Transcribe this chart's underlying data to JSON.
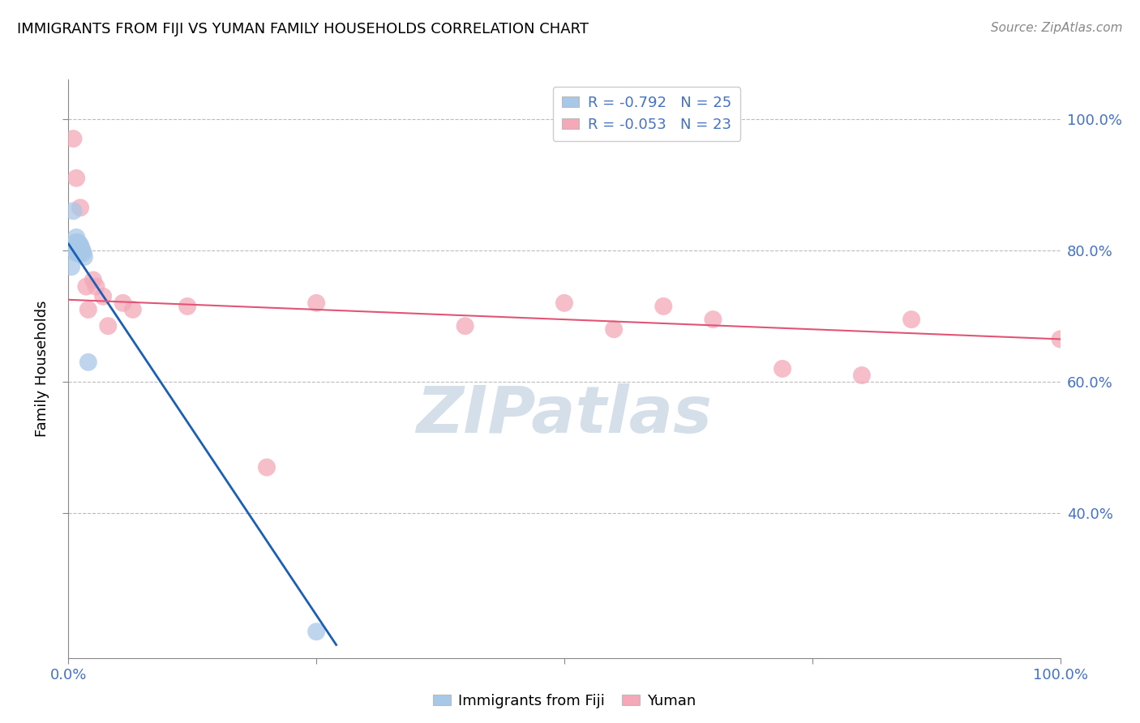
{
  "title": "IMMIGRANTS FROM FIJI VS YUMAN FAMILY HOUSEHOLDS CORRELATION CHART",
  "source": "Source: ZipAtlas.com",
  "ylabel": "Family Households",
  "right_yticks": [
    "40.0%",
    "60.0%",
    "80.0%",
    "100.0%"
  ],
  "right_ytick_vals": [
    0.4,
    0.6,
    0.8,
    1.0
  ],
  "color_blue": "#a8c8e8",
  "color_pink": "#f4a8b8",
  "color_blue_line": "#1a5fb4",
  "color_pink_line": "#e05575",
  "fiji_x": [
    0.003,
    0.005,
    0.006,
    0.006,
    0.007,
    0.007,
    0.008,
    0.008,
    0.008,
    0.009,
    0.009,
    0.009,
    0.01,
    0.01,
    0.01,
    0.011,
    0.011,
    0.012,
    0.012,
    0.013,
    0.014,
    0.015,
    0.016,
    0.02,
    0.25
  ],
  "fiji_y": [
    0.775,
    0.86,
    0.808,
    0.798,
    0.812,
    0.8,
    0.82,
    0.81,
    0.8,
    0.812,
    0.804,
    0.796,
    0.812,
    0.804,
    0.795,
    0.81,
    0.8,
    0.808,
    0.798,
    0.804,
    0.8,
    0.796,
    0.79,
    0.63,
    0.22
  ],
  "yuman_x": [
    0.005,
    0.008,
    0.012,
    0.018,
    0.02,
    0.025,
    0.028,
    0.035,
    0.04,
    0.055,
    0.065,
    0.12,
    0.2,
    0.25,
    0.4,
    0.5,
    0.55,
    0.6,
    0.65,
    0.72,
    0.8,
    0.85,
    1.0
  ],
  "yuman_y": [
    0.97,
    0.91,
    0.865,
    0.745,
    0.71,
    0.755,
    0.745,
    0.73,
    0.685,
    0.72,
    0.71,
    0.715,
    0.47,
    0.72,
    0.685,
    0.72,
    0.68,
    0.715,
    0.695,
    0.62,
    0.61,
    0.695,
    0.665
  ],
  "blue_line_x": [
    0.0,
    0.27
  ],
  "blue_line_y": [
    0.81,
    0.2
  ],
  "pink_line_x": [
    0.0,
    1.0
  ],
  "pink_line_y": [
    0.725,
    0.665
  ],
  "watermark": "ZIPatlas",
  "xlim": [
    0.0,
    1.0
  ],
  "ylim": [
    0.18,
    1.06
  ],
  "grid_yticks": [
    0.4,
    0.6,
    0.8,
    1.0
  ]
}
